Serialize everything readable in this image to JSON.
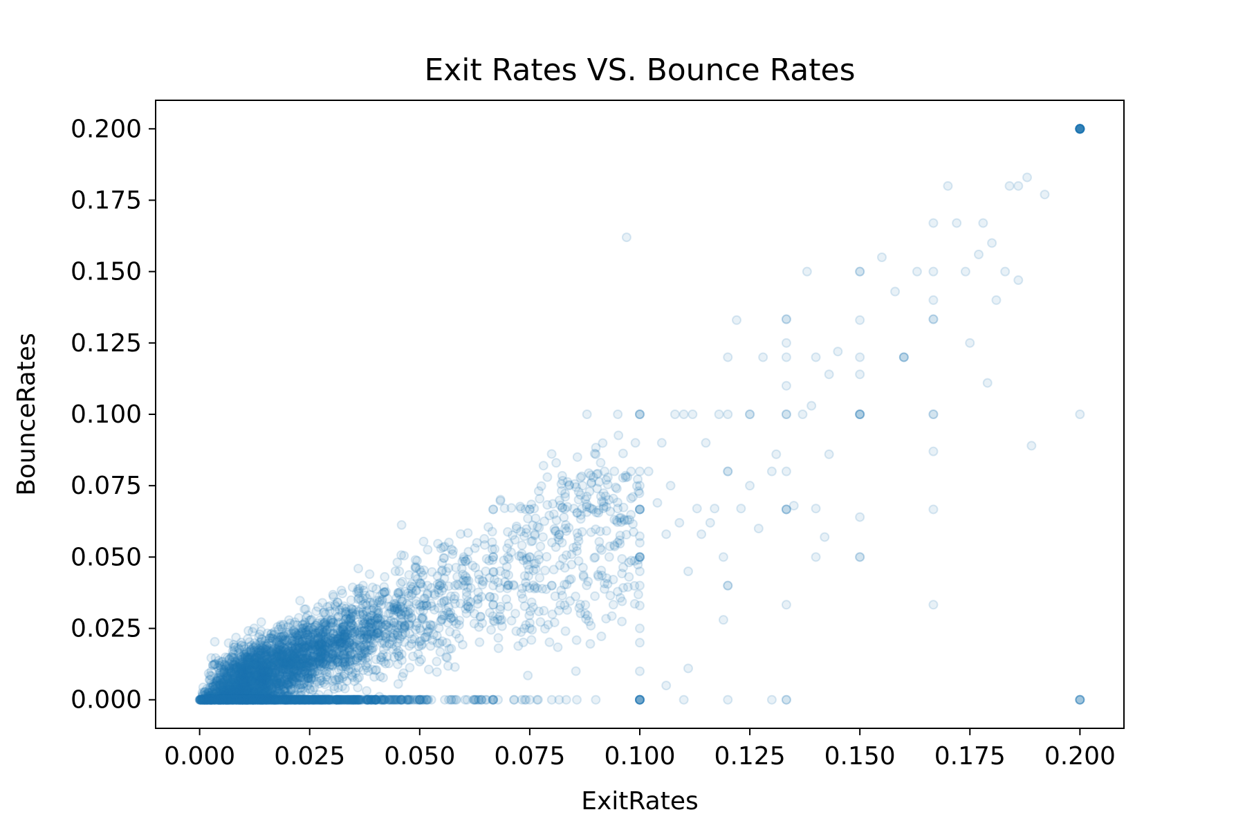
{
  "chart_data": {
    "type": "scatter",
    "title": "Exit Rates VS. Bounce Rates",
    "xlabel": "ExitRates",
    "ylabel": "BounceRates",
    "xlim": [
      -0.01,
      0.21
    ],
    "ylim": [
      -0.01,
      0.21
    ],
    "xticks": [
      "0.000",
      "0.025",
      "0.050",
      "0.075",
      "0.100",
      "0.125",
      "0.150",
      "0.175",
      "0.200"
    ],
    "yticks": [
      "0.000",
      "0.025",
      "0.050",
      "0.075",
      "0.100",
      "0.125",
      "0.150",
      "0.175",
      "0.200"
    ],
    "xtick_values": [
      0.0,
      0.025,
      0.05,
      0.075,
      0.1,
      0.125,
      0.15,
      0.175,
      0.2
    ],
    "ytick_values": [
      0.0,
      0.025,
      0.05,
      0.075,
      0.1,
      0.125,
      0.15,
      0.175,
      0.2
    ],
    "grid": false,
    "marker_color": "#1f77b4",
    "marker_alpha": 0.1,
    "series": [
      {
        "points": [
          [
            0.2,
            0.2
          ],
          [
            0.2,
            0.2
          ],
          [
            0.2,
            0.2
          ],
          [
            0.2,
            0.2
          ],
          [
            0.2,
            0.2
          ],
          [
            0.2,
            0.2
          ],
          [
            0.2,
            0.2
          ],
          [
            0.2,
            0.2
          ],
          [
            0.2,
            0.2
          ],
          [
            0.2,
            0.2
          ],
          [
            0.2,
            0.2
          ],
          [
            0.2,
            0.2
          ],
          [
            0.2,
            0.2
          ],
          [
            0.2,
            0.2
          ],
          [
            0.2,
            0.2
          ],
          [
            0.2,
            0.2
          ],
          [
            0.2,
            0.2
          ],
          [
            0.2,
            0.2
          ],
          [
            0.2,
            0.2
          ],
          [
            0.2,
            0.2
          ],
          [
            0.2,
            0.0
          ],
          [
            0.2,
            0.0
          ],
          [
            0.2,
            0.0
          ],
          [
            0.2,
            0.0
          ],
          [
            0.2,
            0.1
          ],
          [
            0.2,
            0.0
          ],
          [
            0.1,
            0.0
          ],
          [
            0.1,
            0.0
          ],
          [
            0.1,
            0.0
          ],
          [
            0.1,
            0.0
          ],
          [
            0.1,
            0.0
          ],
          [
            0.1,
            0.0
          ],
          [
            0.1,
            0.0
          ],
          [
            0.1,
            0.0
          ],
          [
            0.1,
            0.1
          ],
          [
            0.1,
            0.1
          ],
          [
            0.1,
            0.1
          ],
          [
            0.1,
            0.0667
          ],
          [
            0.1,
            0.0667
          ],
          [
            0.1,
            0.0667
          ],
          [
            0.1,
            0.0667
          ],
          [
            0.1,
            0.05
          ],
          [
            0.1,
            0.05
          ],
          [
            0.1,
            0.05
          ],
          [
            0.1,
            0.05
          ],
          [
            0.1,
            0.08
          ],
          [
            0.1,
            0.075
          ],
          [
            0.1,
            0.04
          ],
          [
            0.1,
            0.033
          ],
          [
            0.1,
            0.025
          ],
          [
            0.1,
            0.02
          ],
          [
            0.1,
            0.045
          ],
          [
            0.1,
            0.055
          ],
          [
            0.1,
            0.01
          ],
          [
            0.15,
            0.1
          ],
          [
            0.15,
            0.1
          ],
          [
            0.15,
            0.1
          ],
          [
            0.15,
            0.1
          ],
          [
            0.15,
            0.15
          ],
          [
            0.15,
            0.15
          ],
          [
            0.15,
            0.05
          ],
          [
            0.15,
            0.05
          ],
          [
            0.15,
            0.133
          ],
          [
            0.15,
            0.12
          ],
          [
            0.15,
            0.114
          ],
          [
            0.15,
            0.064
          ],
          [
            0.1333,
            0.0667
          ],
          [
            0.1333,
            0.0667
          ],
          [
            0.1333,
            0.0667
          ],
          [
            0.1333,
            0.1
          ],
          [
            0.1333,
            0.1
          ],
          [
            0.1333,
            0.1333
          ],
          [
            0.1333,
            0.1333
          ],
          [
            0.1333,
            0.0
          ],
          [
            0.1333,
            0.0
          ],
          [
            0.1333,
            0.0333
          ],
          [
            0.1333,
            0.08
          ],
          [
            0.1333,
            0.11
          ],
          [
            0.1333,
            0.12
          ],
          [
            0.1333,
            0.125
          ],
          [
            0.1667,
            0.1
          ],
          [
            0.1667,
            0.1
          ],
          [
            0.1667,
            0.1333
          ],
          [
            0.1667,
            0.1333
          ],
          [
            0.1667,
            0.0667
          ],
          [
            0.1667,
            0.0333
          ],
          [
            0.1667,
            0.15
          ],
          [
            0.1667,
            0.167
          ],
          [
            0.1667,
            0.14
          ],
          [
            0.1667,
            0.087
          ],
          [
            0.16,
            0.12
          ],
          [
            0.16,
            0.12
          ],
          [
            0.16,
            0.12
          ],
          [
            0.125,
            0.1
          ],
          [
            0.125,
            0.1
          ],
          [
            0.125,
            0.075
          ],
          [
            0.12,
            0.08
          ],
          [
            0.12,
            0.08
          ],
          [
            0.12,
            0.04
          ],
          [
            0.12,
            0.04
          ],
          [
            0.12,
            0.1
          ],
          [
            0.0667,
            0.0
          ],
          [
            0.0667,
            0.0
          ],
          [
            0.0667,
            0.0
          ],
          [
            0.0667,
            0.0
          ],
          [
            0.0667,
            0.0667
          ],
          [
            0.0667,
            0.0667
          ],
          [
            0.0667,
            0.05
          ],
          [
            0.0667,
            0.05
          ],
          [
            0.0667,
            0.0333
          ],
          [
            0.0667,
            0.0333
          ],
          [
            0.0667,
            0.04
          ],
          [
            0.075,
            0.05
          ],
          [
            0.075,
            0.05
          ],
          [
            0.075,
            0.0
          ],
          [
            0.075,
            0.0667
          ],
          [
            0.075,
            0.0667
          ],
          [
            0.075,
            0.025
          ],
          [
            0.08,
            0.04
          ],
          [
            0.08,
            0.04
          ],
          [
            0.08,
            0.0
          ],
          [
            0.05,
            0.0
          ],
          [
            0.05,
            0.0
          ],
          [
            0.05,
            0.0
          ],
          [
            0.05,
            0.0333
          ],
          [
            0.05,
            0.025
          ],
          [
            0.0571,
            0.0286
          ],
          [
            0.0571,
            0.0286
          ],
          [
            0.0571,
            0.0
          ],
          [
            0.06,
            0.04
          ],
          [
            0.0545,
            0.04
          ],
          [
            0.04,
            0.0
          ],
          [
            0.04,
            0.0
          ],
          [
            0.035,
            0.0
          ],
          [
            0.03,
            0.0
          ],
          [
            0.045,
            0.0
          ],
          [
            0.025,
            0.0
          ],
          [
            0.02,
            0.0
          ],
          [
            0.015,
            0.0
          ],
          [
            0.01,
            0.0
          ],
          [
            0.005,
            0.0
          ],
          [
            0.0,
            0.0
          ],
          [
            0.0,
            0.0
          ],
          [
            0.0833,
            0.0
          ],
          [
            0.0857,
            0.0
          ],
          [
            0.09,
            0.0
          ],
          [
            0.0714,
            0.0
          ],
          [
            0.11,
            0.0
          ],
          [
            0.13,
            0.0
          ],
          [
            0.1,
            0.0
          ],
          [
            0.0625,
            0.0
          ],
          [
            0.14,
            0.12
          ],
          [
            0.143,
            0.114
          ],
          [
            0.138,
            0.15
          ],
          [
            0.145,
            0.122
          ],
          [
            0.155,
            0.155
          ],
          [
            0.158,
            0.143
          ],
          [
            0.163,
            0.15
          ],
          [
            0.17,
            0.18
          ],
          [
            0.172,
            0.167
          ],
          [
            0.178,
            0.167
          ],
          [
            0.18,
            0.16
          ],
          [
            0.184,
            0.18
          ],
          [
            0.186,
            0.18
          ],
          [
            0.188,
            0.183
          ],
          [
            0.192,
            0.177
          ],
          [
            0.174,
            0.15
          ],
          [
            0.175,
            0.125
          ],
          [
            0.177,
            0.156
          ],
          [
            0.179,
            0.111
          ],
          [
            0.181,
            0.14
          ],
          [
            0.183,
            0.15
          ],
          [
            0.186,
            0.147
          ],
          [
            0.189,
            0.089
          ],
          [
            0.11,
            0.1
          ],
          [
            0.112,
            0.1
          ],
          [
            0.108,
            0.1
          ],
          [
            0.118,
            0.1
          ],
          [
            0.115,
            0.09
          ],
          [
            0.105,
            0.09
          ],
          [
            0.102,
            0.08
          ],
          [
            0.107,
            0.075
          ],
          [
            0.113,
            0.067
          ],
          [
            0.117,
            0.067
          ],
          [
            0.095,
            0.1
          ],
          [
            0.088,
            0.1
          ],
          [
            0.12,
            0.0
          ],
          [
            0.123,
            0.067
          ],
          [
            0.127,
            0.06
          ],
          [
            0.13,
            0.08
          ],
          [
            0.122,
            0.133
          ],
          [
            0.12,
            0.12
          ],
          [
            0.128,
            0.12
          ],
          [
            0.131,
            0.086
          ],
          [
            0.135,
            0.068
          ],
          [
            0.14,
            0.067
          ],
          [
            0.142,
            0.057
          ],
          [
            0.14,
            0.05
          ],
          [
            0.143,
            0.086
          ],
          [
            0.137,
            0.1
          ],
          [
            0.139,
            0.103
          ],
          [
            0.097,
            0.162
          ],
          [
            0.09,
            0.086
          ],
          [
            0.092,
            0.08
          ],
          [
            0.085,
            0.067
          ],
          [
            0.087,
            0.075
          ],
          [
            0.083,
            0.06
          ],
          [
            0.078,
            0.057
          ],
          [
            0.072,
            0.06
          ],
          [
            0.07,
            0.05
          ],
          [
            0.065,
            0.045
          ],
          [
            0.063,
            0.055
          ],
          [
            0.06,
            0.05
          ],
          [
            0.058,
            0.04
          ],
          [
            0.055,
            0.045
          ],
          [
            0.073,
            0.067
          ],
          [
            0.076,
            0.067
          ],
          [
            0.079,
            0.078
          ],
          [
            0.081,
            0.083
          ],
          [
            0.084,
            0.075
          ],
          [
            0.086,
            0.057
          ],
          [
            0.089,
            0.067
          ],
          [
            0.091,
            0.059
          ],
          [
            0.093,
            0.07
          ],
          [
            0.095,
            0.067
          ],
          [
            0.098,
            0.08
          ],
          [
            0.099,
            0.09
          ],
          [
            0.104,
            0.069
          ],
          [
            0.106,
            0.058
          ],
          [
            0.109,
            0.062
          ],
          [
            0.111,
            0.045
          ],
          [
            0.114,
            0.058
          ],
          [
            0.116,
            0.062
          ],
          [
            0.119,
            0.028
          ],
          [
            0.111,
            0.011
          ],
          [
            0.106,
            0.005
          ],
          [
            0.119,
            0.05
          ]
        ]
      }
    ]
  }
}
